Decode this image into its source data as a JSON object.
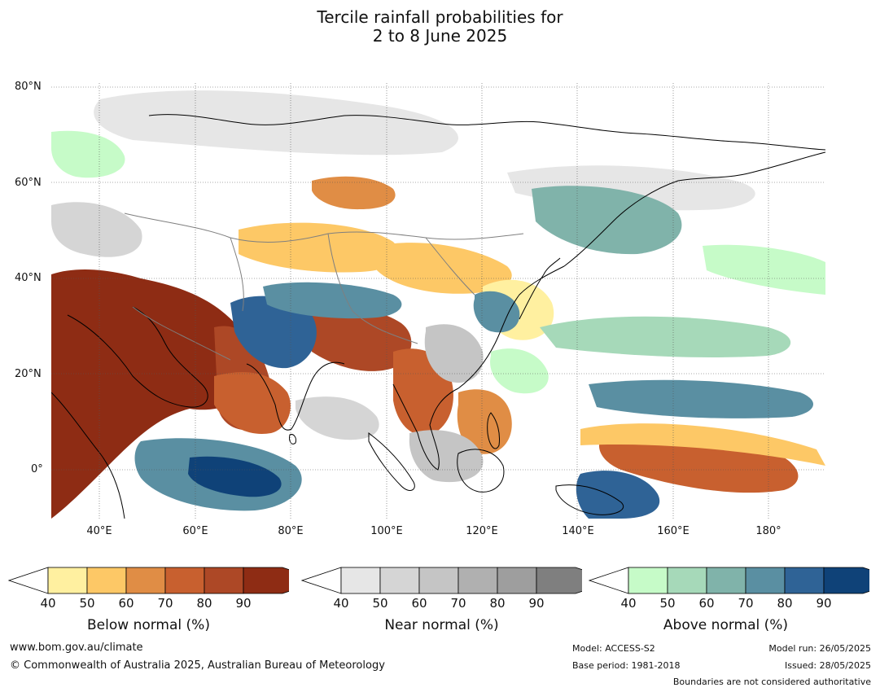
{
  "title": {
    "line1": "Tercile rainfall probabilities for",
    "line2": "2 to 8 June 2025"
  },
  "map": {
    "lat_labels": [
      "80°N",
      "60°N",
      "40°N",
      "20°N",
      "0°"
    ],
    "lon_labels": [
      "40°E",
      "60°E",
      "80°E",
      "100°E",
      "120°E",
      "140°E",
      "160°E",
      "180°"
    ],
    "colors": {
      "below": [
        "#fff0a0",
        "#fdc866",
        "#e08d45",
        "#c8602f",
        "#ad4826",
        "#8e2c14"
      ],
      "near": [
        "#e6e6e6",
        "#d5d5d5",
        "#c5c5c5",
        "#b0b0b0",
        "#9e9e9e",
        "#7f7f7f"
      ],
      "above": [
        "#c6fbc8",
        "#a6d9b9",
        "#80b3aa",
        "#5a8fa2",
        "#2f6396",
        "#0f4278"
      ]
    }
  },
  "colorbars": [
    {
      "title": "Below normal (%)",
      "ticks": [
        "40",
        "50",
        "60",
        "70",
        "80",
        "90"
      ],
      "scheme": "below"
    },
    {
      "title": "Near normal (%)",
      "ticks": [
        "40",
        "50",
        "60",
        "70",
        "80",
        "90"
      ],
      "scheme": "near"
    },
    {
      "title": "Above normal (%)",
      "ticks": [
        "40",
        "50",
        "60",
        "70",
        "80",
        "90"
      ],
      "scheme": "above"
    }
  ],
  "footer": {
    "website": "www.bom.gov.au/climate",
    "copyright": "© Commonwealth of Australia 2025, Australian Bureau of Meteorology",
    "model": "Model: ACCESS-S2",
    "base_period": "Base period: 1981-2018",
    "model_run": "Model run: 26/05/2025",
    "issued": "Issued: 28/05/2025",
    "disclaimer": "Boundaries are not considered authoritative"
  }
}
